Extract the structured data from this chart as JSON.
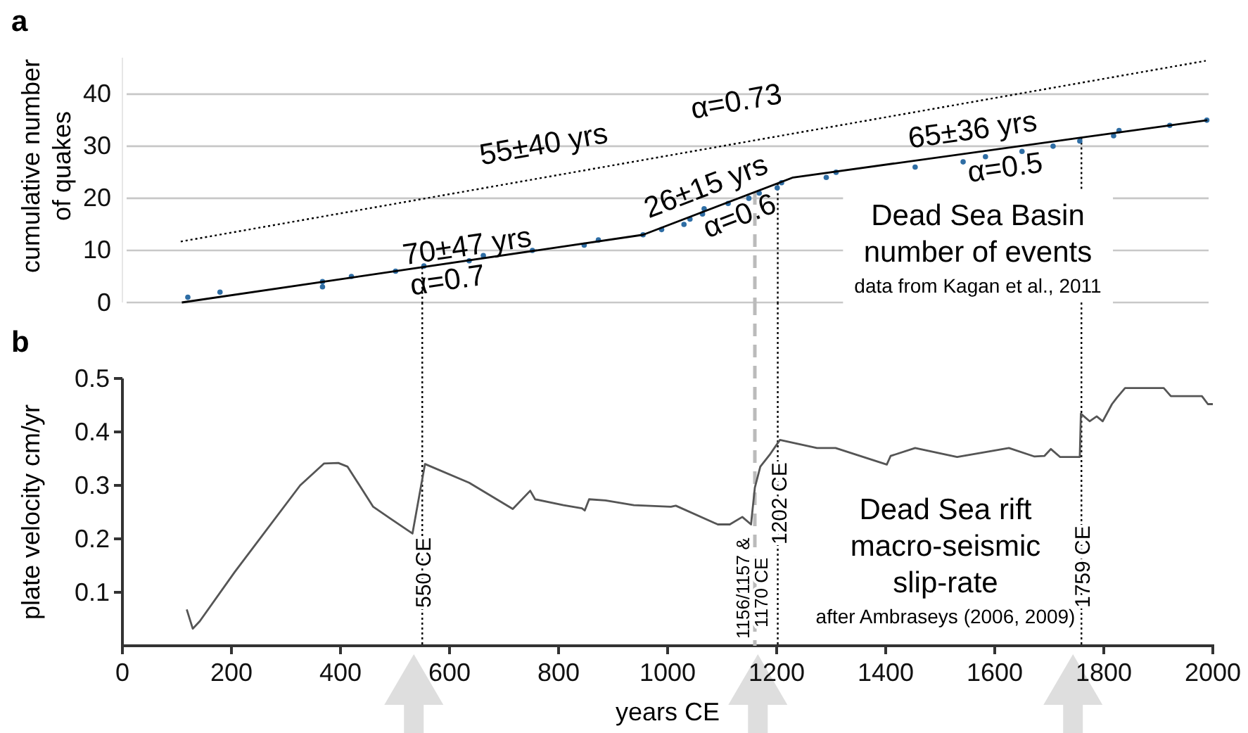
{
  "chart_data": [
    {
      "type": "scatter",
      "title": "a",
      "ylabel": "cumulative number of quakes",
      "xlim": [
        0,
        2000
      ],
      "ylim": [
        0,
        47
      ],
      "yticks": [
        0,
        10,
        20,
        30,
        40
      ],
      "grid": "y",
      "tick_labels": "y",
      "legend": false,
      "series": [
        {
          "color": "#2e6da4",
          "marker": "circle",
          "x": [
            120,
            179,
            367,
            367,
            420,
            501,
            553,
            636,
            662,
            752,
            847,
            873,
            955,
            989,
            1030,
            1041,
            1064,
            1067,
            1111,
            1149,
            1168,
            1201,
            1209,
            1291,
            1309,
            1454,
            1542,
            1583,
            1650,
            1707,
            1756,
            1818,
            1828,
            1921,
            1989
          ],
          "values": [
            1,
            2,
            3,
            4,
            5,
            6,
            7,
            8,
            9,
            10,
            11,
            12,
            13,
            14,
            15,
            16,
            17,
            18,
            19,
            20,
            21,
            22,
            23,
            24,
            25,
            26,
            27,
            28,
            29,
            30,
            31,
            32,
            33,
            34,
            35
          ]
        },
        {
          "type": "line",
          "color": "#000000",
          "line_style": "solid",
          "x": [
            109,
            955,
            1230,
            1990
          ],
          "values": [
            0,
            13,
            24,
            35
          ]
        },
        {
          "type": "line",
          "color": "#000000",
          "line_style": "dotted",
          "x": [
            107,
            1987
          ],
          "values": [
            11.7,
            46.4
          ]
        }
      ],
      "ref_lines": [
        {
          "axis": "x",
          "value": 550,
          "color": "#000000",
          "line_style": "dotted"
        },
        {
          "axis": "x",
          "value": 1160,
          "color": "#bbbbbb",
          "line_style": "dashed"
        },
        {
          "axis": "x",
          "value": 1202,
          "color": "#000000",
          "line_style": "dotted"
        },
        {
          "axis": "x",
          "value": 1759,
          "color": "#000000",
          "line_style": "dotted"
        }
      ],
      "annotations": [
        {
          "text": "55±40 yrs",
          "x": 783,
          "y": 24.2
        },
        {
          "text": "α=0.73",
          "x": 1139,
          "y": 30.8
        },
        {
          "text": "70±47 yrs",
          "x": 636,
          "y": 8.1
        },
        {
          "text": "α=0.7",
          "x": 592,
          "y": 7.4
        },
        {
          "text": "26±15 yrs",
          "x": 1085,
          "y": 18.2
        },
        {
          "text": "α=0.6",
          "x": 1121,
          "y": 19.6
        },
        {
          "text": "65±36 yrs",
          "x": 1565,
          "y": 28.8
        },
        {
          "text": "α=0.5",
          "x": 1614,
          "y": 29.6
        },
        "Dead Sea Basin",
        "number of events",
        "data from Kagan et al., 2011"
      ]
    },
    {
      "type": "line",
      "title": "b",
      "xlabel": "years CE",
      "ylabel": "plate velocity cm/yr",
      "xlim": [
        0,
        2000
      ],
      "xticks": [
        0,
        200,
        400,
        600,
        800,
        1000,
        1200,
        1400,
        1600,
        1800,
        2000
      ],
      "ylim": [
        0,
        0.5
      ],
      "yticks": [
        0.1,
        0.2,
        0.3,
        0.4,
        0.5
      ],
      "grid": false,
      "legend": false,
      "series": [
        {
          "color": "#555555",
          "line_style": "solid",
          "x": [
            118,
            129,
            142,
            206,
            326,
            370,
            396,
            413,
            460,
            490,
            532,
            555,
            636,
            716,
            748,
            757,
            809,
            843,
            848,
            856,
            886,
            938,
            1006,
            1015,
            1092,
            1114,
            1137,
            1153,
            1160,
            1170,
            1187,
            1206,
            1274,
            1308,
            1402,
            1409,
            1454,
            1531,
            1626,
            1673,
            1691,
            1703,
            1720,
            1756,
            1758,
            1774,
            1787,
            1798,
            1815,
            1824,
            1839,
            1910,
            1923,
            1980,
            1991,
            2000
          ],
          "values": [
            0.068,
            0.032,
            0.046,
            0.138,
            0.3,
            0.341,
            0.342,
            0.335,
            0.26,
            0.239,
            0.21,
            0.34,
            0.305,
            0.256,
            0.29,
            0.274,
            0.263,
            0.257,
            0.253,
            0.274,
            0.272,
            0.263,
            0.26,
            0.262,
            0.227,
            0.227,
            0.241,
            0.227,
            0.296,
            0.335,
            0.357,
            0.385,
            0.37,
            0.37,
            0.339,
            0.355,
            0.37,
            0.353,
            0.37,
            0.354,
            0.355,
            0.368,
            0.353,
            0.353,
            0.434,
            0.42,
            0.429,
            0.42,
            0.452,
            0.464,
            0.482,
            0.482,
            0.467,
            0.467,
            0.452,
            0.452
          ]
        }
      ],
      "ref_lines": [
        {
          "axis": "x",
          "value": 550,
          "label": "550 CE",
          "color": "#000000",
          "line_style": "dotted"
        },
        {
          "axis": "x",
          "value": 1160,
          "label": "1156/1157 & 1170 CE",
          "color": "#bbbbbb",
          "line_style": "dashed"
        },
        {
          "axis": "x",
          "value": 1202,
          "label": "1202 CE",
          "color": "#000000",
          "line_style": "dotted"
        },
        {
          "axis": "x",
          "value": 1759,
          "label": "1759 CE",
          "color": "#000000",
          "line_style": "dotted"
        }
      ],
      "annotations": [
        "Dead Sea rift",
        "macro-seismic",
        "slip-rate",
        "after Ambraseys (2006, 2009)"
      ]
    }
  ]
}
